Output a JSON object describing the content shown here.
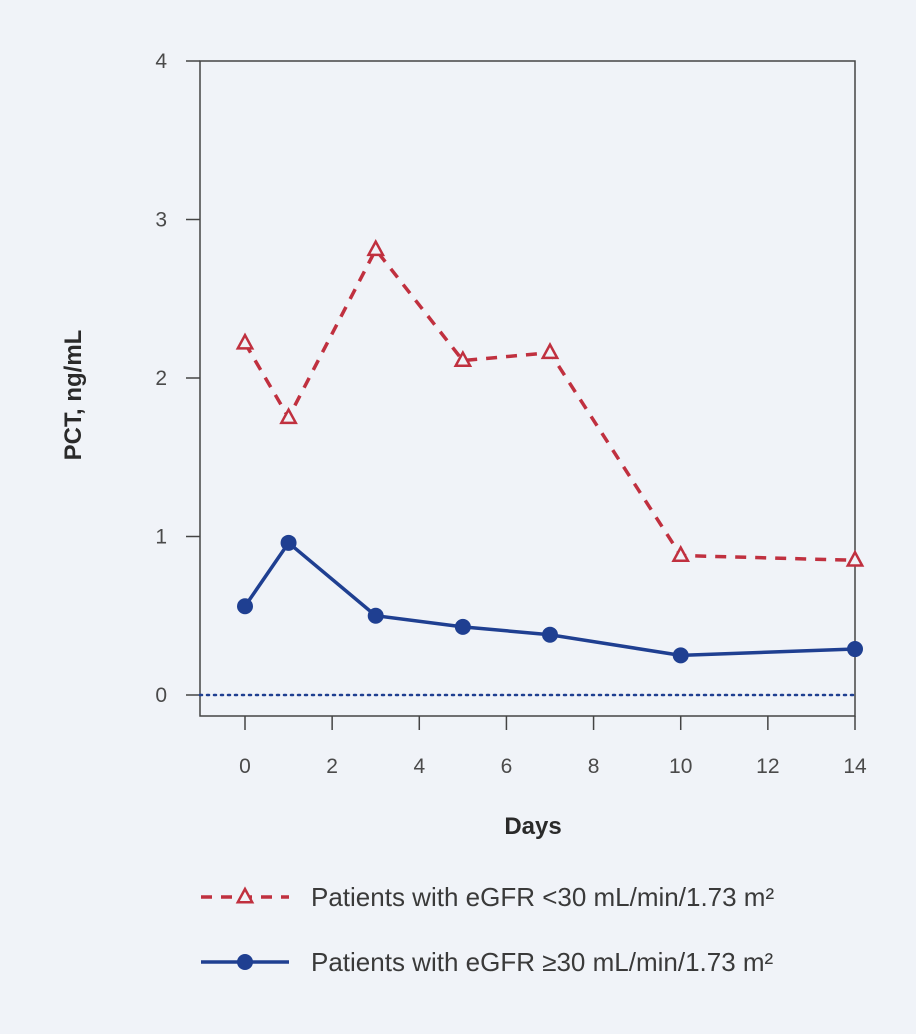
{
  "chart_data": {
    "type": "line",
    "title": "",
    "xlabel": "Days",
    "ylabel": "PCT, ng/mL",
    "xlim": [
      -1,
      14
    ],
    "ylim": [
      0,
      4
    ],
    "xticks": [
      0,
      2,
      4,
      6,
      8,
      10,
      12,
      14
    ],
    "yticks": [
      0,
      1,
      2,
      3,
      4
    ],
    "grid": false,
    "reference_line": {
      "y": 0,
      "style": "dotted",
      "color": "#1f3f91"
    },
    "legend_position": "bottom",
    "series": [
      {
        "name": "Patients with eGFR <30 mL/min/1.73 m²",
        "color": "#c0303f",
        "line_style": "dashed",
        "marker": "open-triangle",
        "x": [
          0,
          1,
          3,
          5,
          7,
          10,
          14
        ],
        "y": [
          2.22,
          1.75,
          2.81,
          2.11,
          2.16,
          0.88,
          0.85
        ]
      },
      {
        "name": "Patients with eGFR ≥30 mL/min/1.73 m²",
        "color": "#1f3f91",
        "line_style": "solid",
        "marker": "filled-circle",
        "x": [
          0,
          1,
          3,
          5,
          7,
          10,
          14
        ],
        "y": [
          0.56,
          0.96,
          0.5,
          0.43,
          0.38,
          0.25,
          0.29
        ]
      }
    ]
  }
}
